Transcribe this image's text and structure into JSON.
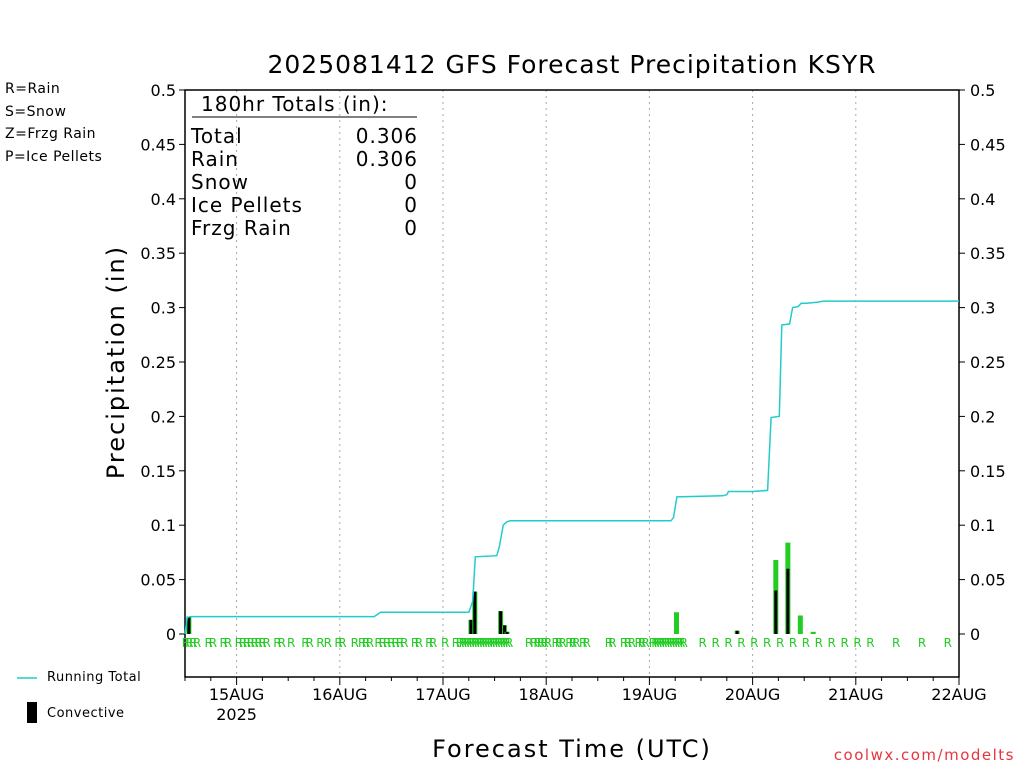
{
  "chart_data": {
    "type": "bar",
    "title": "2025081412 GFS Forecast Precipitation KSYR",
    "ylabel": "Precipitation (in)",
    "xlabel": "Forecast Time (UTC)",
    "ylim": [
      0,
      0.5
    ],
    "yticks": [
      "0",
      "0.05",
      "0.1",
      "0.15",
      "0.2",
      "0.25",
      "0.3",
      "0.35",
      "0.4",
      "0.45",
      "0.5"
    ],
    "x_range_hours": [
      0,
      180
    ],
    "day_ticks": [
      {
        "hour": 12,
        "label": "15AUG",
        "sublabel": "2025"
      },
      {
        "hour": 36,
        "label": "16AUG"
      },
      {
        "hour": 60,
        "label": "17AUG"
      },
      {
        "hour": 84,
        "label": "18AUG"
      },
      {
        "hour": 108,
        "label": "19AUG"
      },
      {
        "hour": 132,
        "label": "20AUG"
      },
      {
        "hour": 156,
        "label": "21AUG"
      },
      {
        "hour": 180,
        "label": "22AUG"
      }
    ],
    "grid": "vertical dotted at day ticks",
    "precip_type_legend": [
      {
        "text": "R=Rain",
        "color": "#22cc22"
      },
      {
        "text": "S=Snow",
        "color": "#3344dd"
      },
      {
        "text": "Z=Frzg Rain",
        "color": "#f08c3c"
      },
      {
        "text": "P=Ice Pellets",
        "color": "#e8359b"
      }
    ],
    "series_legend": {
      "running_total": "Running Total",
      "convective": "Convective"
    },
    "colors": {
      "rain": "#22cc22",
      "running_total": "#22cccc",
      "convective": "#000000"
    },
    "totals_box": {
      "header": "180hr Totals (in):",
      "rows": [
        {
          "label": "Total",
          "value": "0.306"
        },
        {
          "label": "Rain",
          "value": "0.306"
        },
        {
          "label": "Snow",
          "value": "0"
        },
        {
          "label": "Ice Pellets",
          "value": "0"
        },
        {
          "label": "Frzg Rain",
          "value": "0"
        }
      ]
    },
    "bars": [
      {
        "hour": 0.9,
        "total": 0.016,
        "convective": 0.016
      },
      {
        "hour": 66.5,
        "total": 0.013,
        "convective": 0.013
      },
      {
        "hour": 67.4,
        "total": 0.039,
        "convective": 0.039
      },
      {
        "hour": 73.4,
        "total": 0.021,
        "convective": 0.021
      },
      {
        "hour": 74.3,
        "total": 0.008,
        "convective": 0.008
      },
      {
        "hour": 74.9,
        "total": 0.002,
        "convective": 0.002
      },
      {
        "hour": 114.3,
        "total": 0.02,
        "convective": 0.0
      },
      {
        "hour": 128.4,
        "total": 0.003,
        "convective": 0.003
      },
      {
        "hour": 137.4,
        "total": 0.068,
        "convective": 0.04
      },
      {
        "hour": 140.2,
        "total": 0.084,
        "convective": 0.06
      },
      {
        "hour": 143.1,
        "total": 0.017,
        "convective": 0.0
      },
      {
        "hour": 146.1,
        "total": 0.002,
        "convective": 0.0
      }
    ],
    "running_total": {
      "x": [
        0,
        0.5,
        1.2,
        44,
        45.5,
        46.5,
        66,
        66.9,
        67.5,
        72.5,
        73.1,
        74,
        74.8,
        75.6,
        76.1,
        113,
        113.6,
        114.4,
        125,
        126,
        126.4,
        132,
        135.5,
        136.3,
        138.2,
        138.8,
        140.6,
        141.3,
        142.6,
        143.3,
        144.5,
        147,
        148.5,
        149,
        180
      ],
      "y": [
        0,
        0.015,
        0.016,
        0.016,
        0.02,
        0.02,
        0.02,
        0.03,
        0.071,
        0.072,
        0.08,
        0.1,
        0.103,
        0.104,
        0.104,
        0.104,
        0.107,
        0.126,
        0.127,
        0.128,
        0.131,
        0.131,
        0.132,
        0.199,
        0.2,
        0.284,
        0.285,
        0.3,
        0.301,
        0.304,
        0.304,
        0.305,
        0.306,
        0.306,
        0.306
      ]
    },
    "ptype_markers": {
      "symbol": "R",
      "hours": [
        0.2,
        1,
        1.9,
        2.8,
        5.5,
        6.5,
        9,
        10,
        12.5,
        13.5,
        14.4,
        15.3,
        16.2,
        17.1,
        18,
        19,
        21.5,
        22.5,
        24.7,
        28,
        29,
        31.5,
        33.2,
        35.7,
        36.6,
        39.5,
        41.2,
        42.1,
        43,
        45,
        46,
        47,
        48,
        49,
        50,
        51,
        53.5,
        54.4,
        56.8,
        57.7,
        60.5,
        63,
        64,
        64.6,
        65.2,
        65.8,
        66.4,
        67,
        67.6,
        68.2,
        68.8,
        69.4,
        70,
        70.6,
        71.2,
        71.8,
        72.4,
        73,
        73.6,
        74.2,
        74.8,
        75.4,
        80,
        81.2,
        82,
        82.8,
        83.6,
        84.4,
        86.2,
        87,
        87.8,
        89.4,
        90.2,
        91,
        92.6,
        93.4,
        98.6,
        99.4,
        102.1,
        103,
        103.9,
        105.5,
        106.3,
        107.1,
        108.8,
        109.4,
        110,
        110.6,
        111.2,
        111.8,
        112.4,
        113,
        113.6,
        114.2,
        114.8,
        115.4,
        116,
        120.4,
        123.4,
        126.4,
        129.4,
        132.4,
        135.4,
        138.4,
        141.4,
        144.4,
        147.4,
        150.4,
        153.4,
        156.4,
        159.4,
        165.4,
        171.4,
        177.4
      ]
    }
  }
}
